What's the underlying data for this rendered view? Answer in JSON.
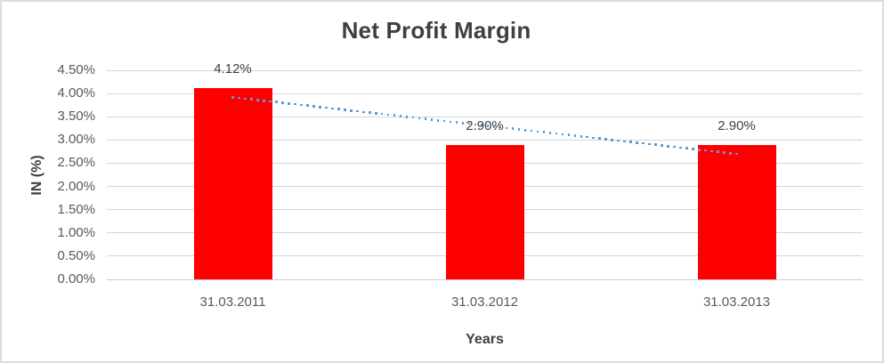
{
  "chart_data": {
    "type": "bar",
    "title": "Net Profit Margin",
    "xlabel": "Years",
    "ylabel": "IN (%)",
    "categories": [
      "31.03.2011",
      "31.03.2012",
      "31.03.2013"
    ],
    "values": [
      4.12,
      2.9,
      2.9
    ],
    "data_labels": [
      "4.12%",
      "2.90%",
      "2.90%"
    ],
    "y_axis": {
      "min": 0,
      "max": 4.5,
      "step": 0.5,
      "tick_labels": [
        "0.00%",
        "0.50%",
        "1.00%",
        "1.50%",
        "2.00%",
        "2.50%",
        "3.00%",
        "3.50%",
        "4.00%",
        "4.50%"
      ]
    },
    "ylim": [
      0,
      4.5
    ],
    "grid": true,
    "legend": false,
    "bar_color": "#ff0000",
    "trendline": {
      "type": "linear",
      "style": "dotted",
      "color": "#5b9bd5",
      "start_value": 3.92,
      "end_value": 2.7
    }
  },
  "colors": {
    "title_text": "#3f3f3f",
    "axis_title_text": "#404040",
    "tick_text": "#595959",
    "data_label_text": "#404040",
    "gridline": "#d6d6d6",
    "axis_line": "#c9c9c9",
    "chart_border": "#dcdcdc",
    "background": "#ffffff"
  }
}
